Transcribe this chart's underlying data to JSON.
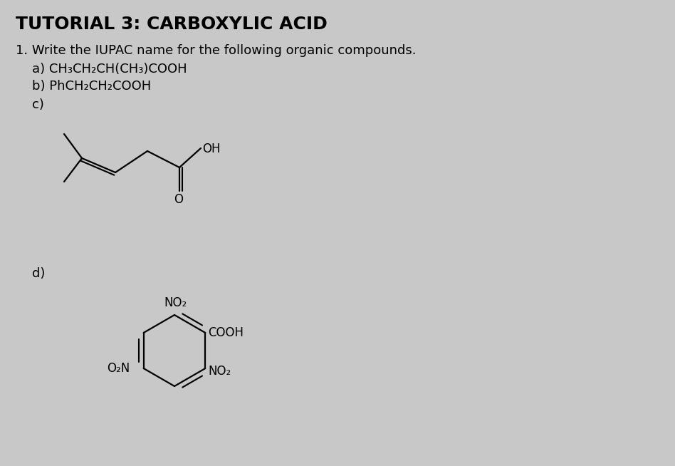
{
  "title": "TUTORIAL 3: CARBOXYLIC ACID",
  "title_fontsize": 18,
  "background_color": "#c8c8c8",
  "text_color": "#000000",
  "line_color": "#000000",
  "question1": "1. Write the IUPAC name for the following organic compounds.",
  "q1_fontsize": 13,
  "part_a_label": "a) CH₃CH₂CH(CH₃)COOH",
  "part_b_label": "b) PhCH₂CH₂COOH",
  "part_c_label": "c)",
  "part_d_label": "d)",
  "label_fontsize": 13,
  "lw": 1.6
}
